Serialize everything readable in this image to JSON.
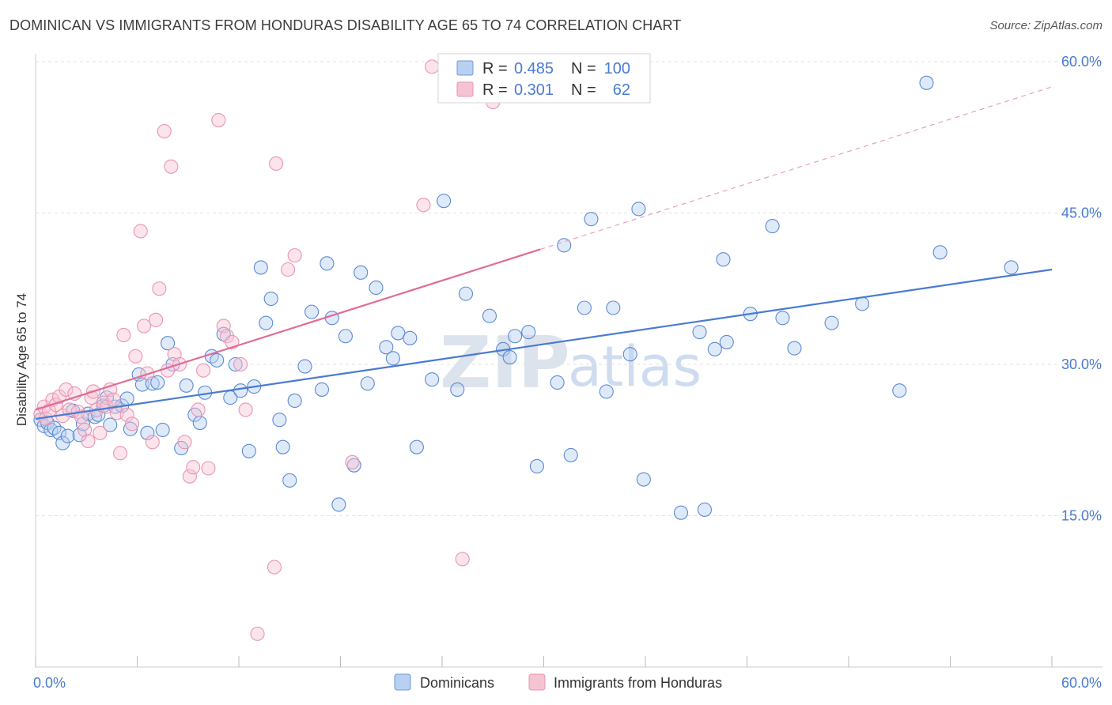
{
  "title": "DOMINICAN VS IMMIGRANTS FROM HONDURAS DISABILITY AGE 65 TO 74 CORRELATION CHART",
  "source": "Source: ZipAtlas.com",
  "watermark": {
    "zip": "ZIP",
    "atlas": "atlas"
  },
  "colors": {
    "blue": "#4a7bd0",
    "blue_fill": "#b8d0f2",
    "pink": "#e06b96",
    "pink_fill": "#f6c3d3",
    "grid": "#e3e3e3"
  },
  "legend": {
    "r_label": "R =",
    "n_label": "N =",
    "series": [
      {
        "r": "0.485",
        "n": "100"
      },
      {
        "r": "0.301",
        "n": "62"
      }
    ]
  },
  "chart_data": {
    "type": "scatter",
    "title": "DOMINICAN VS IMMIGRANTS FROM HONDURAS DISABILITY AGE 65 TO 74 CORRELATION CHART",
    "xlabel": "",
    "ylabel": "Disability Age 65 to 74",
    "xlim": [
      0,
      60
    ],
    "ylim": [
      0,
      60
    ],
    "x_tick_labels": [
      "0.0%",
      "60.0%"
    ],
    "y_tick_values": [
      15,
      30,
      45,
      60
    ],
    "y_tick_labels": [
      "15.0%",
      "30.0%",
      "45.0%",
      "60.0%"
    ],
    "legend_position": "bottom",
    "series": [
      {
        "name": "Dominicans",
        "r": 0.485,
        "n": 100,
        "trend": {
          "x0": 0,
          "y0": 24.6,
          "x1": 60,
          "y1": 39.4
        },
        "points": [
          [
            0.3,
            24.5
          ],
          [
            0.5,
            23.9
          ],
          [
            0.7,
            24.2
          ],
          [
            0.9,
            23.5
          ],
          [
            1.1,
            23.7
          ],
          [
            1.4,
            23.2
          ],
          [
            1.6,
            22.2
          ],
          [
            1.9,
            22.9
          ],
          [
            2.2,
            25.4
          ],
          [
            2.6,
            23.0
          ],
          [
            2.8,
            24.1
          ],
          [
            3.1,
            25.1
          ],
          [
            3.5,
            24.8
          ],
          [
            3.7,
            25.0
          ],
          [
            4.0,
            25.9
          ],
          [
            4.2,
            26.7
          ],
          [
            4.4,
            24.0
          ],
          [
            4.7,
            25.8
          ],
          [
            5.1,
            25.9
          ],
          [
            5.4,
            26.6
          ],
          [
            5.6,
            23.6
          ],
          [
            6.1,
            29.0
          ],
          [
            6.3,
            28.0
          ],
          [
            6.6,
            23.2
          ],
          [
            6.9,
            28.1
          ],
          [
            7.2,
            28.2
          ],
          [
            7.5,
            23.5
          ],
          [
            7.8,
            32.1
          ],
          [
            8.1,
            30.0
          ],
          [
            8.6,
            21.7
          ],
          [
            8.9,
            27.9
          ],
          [
            9.4,
            25.0
          ],
          [
            9.7,
            24.2
          ],
          [
            10.0,
            27.2
          ],
          [
            10.4,
            30.8
          ],
          [
            10.7,
            30.4
          ],
          [
            11.1,
            33.0
          ],
          [
            11.5,
            26.7
          ],
          [
            11.8,
            30.0
          ],
          [
            12.1,
            27.4
          ],
          [
            12.6,
            21.4
          ],
          [
            12.9,
            27.8
          ],
          [
            13.3,
            39.6
          ],
          [
            13.6,
            34.1
          ],
          [
            13.9,
            36.5
          ],
          [
            14.4,
            24.5
          ],
          [
            14.6,
            21.8
          ],
          [
            15.0,
            18.5
          ],
          [
            15.3,
            26.4
          ],
          [
            15.9,
            29.8
          ],
          [
            16.3,
            35.2
          ],
          [
            16.9,
            27.5
          ],
          [
            17.2,
            40.0
          ],
          [
            17.5,
            34.6
          ],
          [
            17.9,
            16.1
          ],
          [
            18.3,
            32.8
          ],
          [
            18.8,
            20.0
          ],
          [
            19.2,
            39.1
          ],
          [
            19.6,
            28.1
          ],
          [
            20.1,
            37.6
          ],
          [
            20.7,
            31.7
          ],
          [
            21.1,
            30.6
          ],
          [
            21.4,
            33.1
          ],
          [
            22.1,
            32.6
          ],
          [
            22.5,
            21.8
          ],
          [
            23.4,
            28.5
          ],
          [
            24.1,
            46.2
          ],
          [
            24.9,
            27.5
          ],
          [
            25.4,
            37.0
          ],
          [
            26.8,
            34.8
          ],
          [
            27.6,
            31.5
          ],
          [
            28.0,
            30.7
          ],
          [
            28.3,
            32.8
          ],
          [
            29.1,
            33.2
          ],
          [
            29.6,
            19.9
          ],
          [
            30.8,
            28.2
          ],
          [
            31.2,
            41.8
          ],
          [
            31.6,
            21.0
          ],
          [
            32.4,
            35.6
          ],
          [
            32.8,
            44.4
          ],
          [
            33.7,
            27.3
          ],
          [
            34.1,
            35.6
          ],
          [
            35.1,
            31.0
          ],
          [
            35.6,
            45.4
          ],
          [
            35.9,
            18.6
          ],
          [
            38.1,
            15.3
          ],
          [
            39.2,
            33.2
          ],
          [
            39.5,
            15.6
          ],
          [
            40.1,
            31.5
          ],
          [
            40.6,
            40.4
          ],
          [
            40.8,
            32.2
          ],
          [
            42.2,
            35.0
          ],
          [
            43.5,
            43.7
          ],
          [
            44.1,
            34.6
          ],
          [
            44.8,
            31.6
          ],
          [
            47.0,
            34.1
          ],
          [
            48.8,
            36.0
          ],
          [
            51.0,
            27.4
          ],
          [
            52.6,
            57.9
          ],
          [
            53.4,
            41.1
          ],
          [
            57.6,
            39.6
          ]
        ]
      },
      {
        "name": "Immigrants from Honduras",
        "r": 0.301,
        "n": 62,
        "trend": {
          "x0": 0,
          "y0": 25.5,
          "x1": 29.8,
          "y1": 41.4
        },
        "trend_ext": {
          "x0": 29.8,
          "y0": 41.4,
          "x1": 60,
          "y1": 57.5
        },
        "points": [
          [
            0.3,
            25.1
          ],
          [
            0.5,
            25.8
          ],
          [
            0.6,
            24.6
          ],
          [
            0.8,
            25.4
          ],
          [
            1.0,
            26.5
          ],
          [
            1.2,
            26.0
          ],
          [
            1.4,
            26.8
          ],
          [
            1.6,
            24.9
          ],
          [
            1.8,
            27.5
          ],
          [
            2.0,
            25.5
          ],
          [
            2.3,
            27.1
          ],
          [
            2.5,
            25.3
          ],
          [
            2.7,
            24.8
          ],
          [
            2.9,
            23.5
          ],
          [
            3.1,
            22.4
          ],
          [
            3.3,
            26.7
          ],
          [
            3.4,
            27.3
          ],
          [
            3.6,
            25.5
          ],
          [
            3.8,
            23.2
          ],
          [
            4.0,
            26.2
          ],
          [
            4.2,
            25.8
          ],
          [
            4.4,
            27.5
          ],
          [
            4.6,
            26.5
          ],
          [
            4.8,
            25.2
          ],
          [
            5.0,
            21.2
          ],
          [
            5.2,
            32.9
          ],
          [
            5.4,
            25.0
          ],
          [
            5.7,
            24.1
          ],
          [
            5.9,
            30.8
          ],
          [
            6.2,
            43.2
          ],
          [
            6.4,
            33.8
          ],
          [
            6.6,
            29.1
          ],
          [
            6.9,
            22.3
          ],
          [
            7.1,
            34.4
          ],
          [
            7.3,
            37.5
          ],
          [
            7.6,
            53.1
          ],
          [
            7.8,
            29.4
          ],
          [
            8.0,
            49.6
          ],
          [
            8.2,
            31.0
          ],
          [
            8.5,
            30.0
          ],
          [
            8.8,
            22.3
          ],
          [
            9.1,
            18.9
          ],
          [
            9.3,
            19.8
          ],
          [
            9.6,
            25.5
          ],
          [
            9.9,
            29.4
          ],
          [
            10.2,
            19.7
          ],
          [
            10.8,
            54.2
          ],
          [
            11.1,
            33.8
          ],
          [
            11.3,
            32.8
          ],
          [
            11.6,
            32.2
          ],
          [
            12.1,
            30.0
          ],
          [
            12.4,
            25.5
          ],
          [
            13.1,
            3.3
          ],
          [
            14.1,
            9.9
          ],
          [
            14.2,
            49.9
          ],
          [
            14.9,
            39.4
          ],
          [
            15.3,
            40.8
          ],
          [
            18.7,
            20.3
          ],
          [
            22.9,
            45.8
          ],
          [
            23.4,
            59.5
          ],
          [
            25.2,
            10.7
          ],
          [
            27.0,
            56.0
          ]
        ]
      }
    ]
  }
}
